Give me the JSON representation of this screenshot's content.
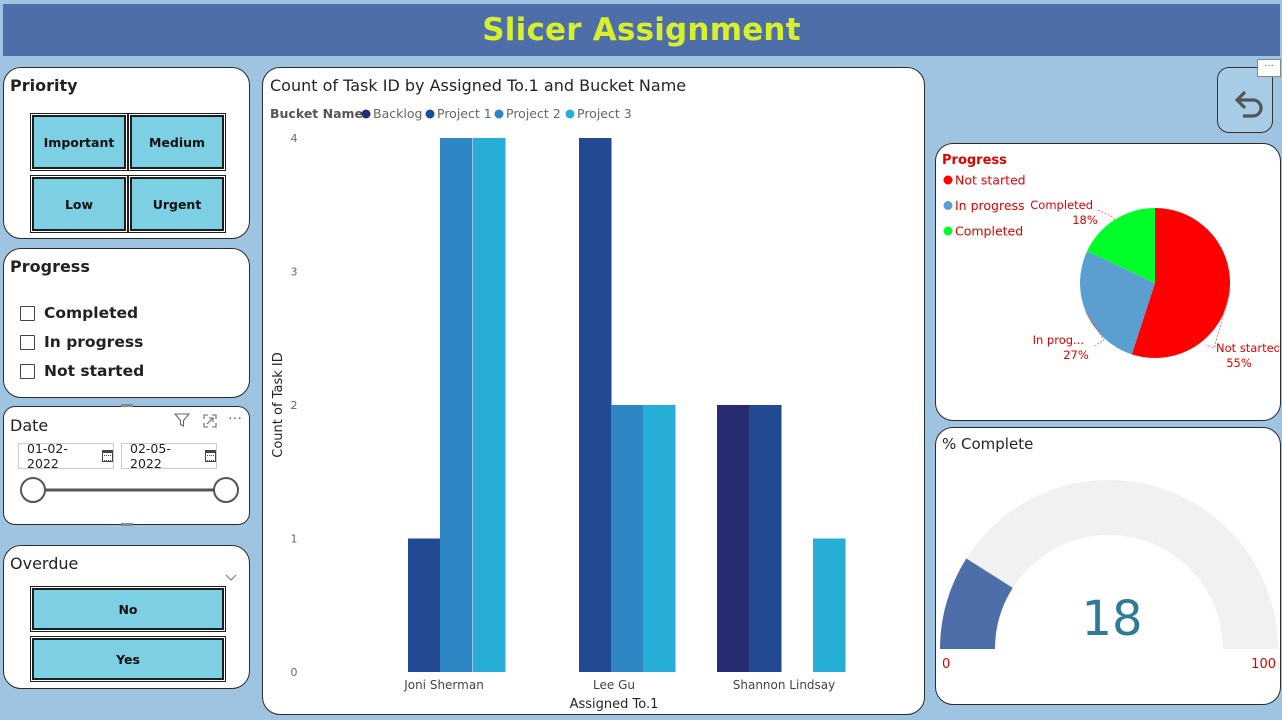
{
  "header": {
    "title": "Slicer Assignment"
  },
  "priority_slicer": {
    "title": "Priority",
    "options": [
      "Important",
      "Medium",
      "Low",
      "Urgent"
    ]
  },
  "progress_slicer": {
    "title": "Progress",
    "options": [
      "Completed",
      "In progress",
      "Not started"
    ]
  },
  "date_slicer": {
    "title": "Date",
    "start": "01-02-2022",
    "end": "02-05-2022",
    "more": "···"
  },
  "overdue_slicer": {
    "title": "Overdue",
    "options": [
      "No",
      "Yes"
    ]
  },
  "colors": {
    "backlog": "#262b72",
    "project1": "#214a93",
    "project2": "#2f86c4",
    "project3": "#27aed6",
    "not_started": "#ff0000",
    "in_progress": "#5a9fd0",
    "completed": "#00ff28",
    "gauge_fill": "#4e6eaa",
    "gauge_track": "#f1f1f1"
  },
  "chart_data": [
    {
      "type": "bar",
      "title": "Count of Task ID by Assigned To.1 and Bucket Name",
      "legend_title": "Bucket Name",
      "xlabel": "Assigned To.1",
      "ylabel": "Count of Task ID",
      "ylim": [
        0,
        4
      ],
      "yticks": [
        "0",
        "1",
        "2",
        "3",
        "4"
      ],
      "categories": [
        "Joni Sherman",
        "Lee Gu",
        "Shannon Lindsay"
      ],
      "series": [
        {
          "name": "Backlog",
          "values": [
            0,
            0,
            2
          ]
        },
        {
          "name": "Project 1",
          "values": [
            1,
            4,
            2
          ]
        },
        {
          "name": "Project 2",
          "values": [
            4,
            2,
            0
          ]
        },
        {
          "name": "Project 3",
          "values": [
            4,
            2,
            1
          ]
        }
      ],
      "legend_position": "top-left"
    },
    {
      "type": "pie",
      "title": "Progress",
      "slices": [
        {
          "name": "Not started",
          "value": 55,
          "label": "Not started",
          "pct": "55%"
        },
        {
          "name": "In progress",
          "value": 27,
          "label": "In prog...",
          "pct": "27%"
        },
        {
          "name": "Completed",
          "value": 18,
          "label": "Completed",
          "pct": "18%"
        }
      ],
      "legend_position": "top-left"
    },
    {
      "type": "gauge",
      "title": "% Complete",
      "value": 18,
      "value_label": "18",
      "min": 0,
      "max": 100,
      "min_label": "0",
      "max_label": "100"
    }
  ]
}
